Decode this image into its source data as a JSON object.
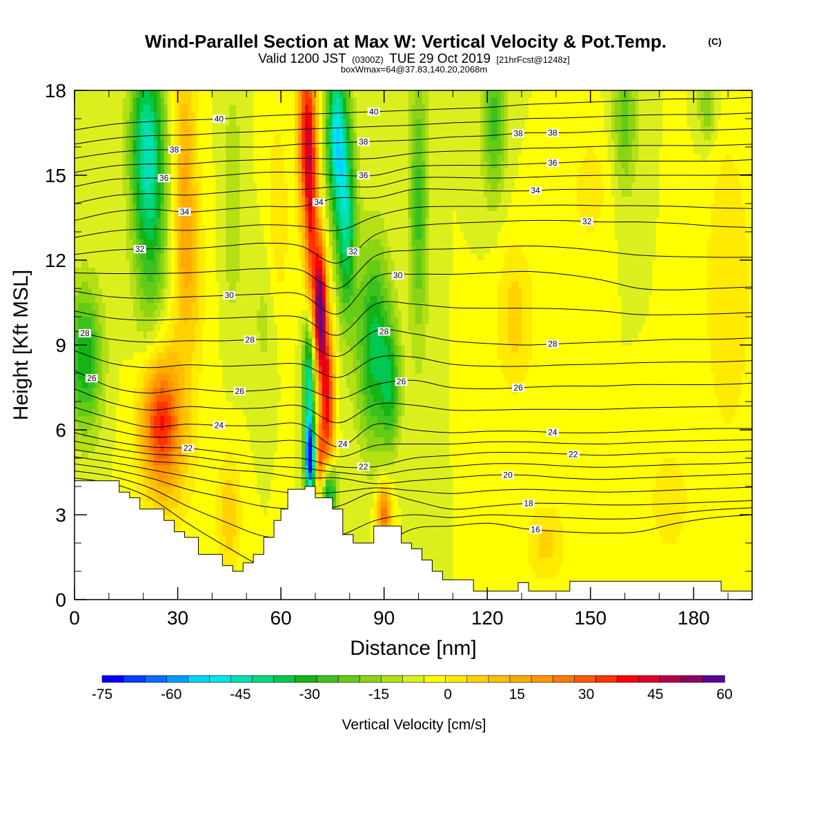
{
  "title": {
    "main": "Wind-Parallel Section at Max W: Vertical Velocity & Pot.Temp.",
    "copyright": "(C)",
    "valid_prefix": "Valid 1200 JST",
    "valid_utc": "(0300Z)",
    "valid_date": "TUE 29 Oct 2019",
    "forecast": "[21hrFcst@1248z]",
    "box_info": "boxWmax=64@37.83,140.20,2068m"
  },
  "chart_data": {
    "type": "heatmap",
    "xlabel": "Distance [nm]",
    "ylabel": "Height [Kft MSL]",
    "xlim": [
      0,
      197
    ],
    "ylim": [
      0,
      18
    ],
    "x_ticks": [
      "0",
      "30",
      "60",
      "90",
      "120",
      "150",
      "180"
    ],
    "x_tick_values": [
      0,
      30,
      60,
      90,
      120,
      150,
      180
    ],
    "y_ticks": [
      "0",
      "3",
      "6",
      "9",
      "12",
      "15",
      "18"
    ],
    "y_tick_values": [
      0,
      3,
      6,
      9,
      12,
      15,
      18
    ],
    "x_minor_step": 10,
    "y_minor_step": 1,
    "terrain": [
      [
        0,
        4.2
      ],
      [
        13,
        4.2
      ],
      [
        13,
        3.8
      ],
      [
        16,
        3.8
      ],
      [
        16,
        3.6
      ],
      [
        19,
        3.6
      ],
      [
        19,
        3.2
      ],
      [
        26,
        3.2
      ],
      [
        26,
        2.8
      ],
      [
        29,
        2.8
      ],
      [
        29,
        2.4
      ],
      [
        32,
        2.4
      ],
      [
        32,
        2.2
      ],
      [
        36,
        2.2
      ],
      [
        36,
        1.6
      ],
      [
        43,
        1.6
      ],
      [
        43,
        1.2
      ],
      [
        46,
        1.2
      ],
      [
        46,
        1.0
      ],
      [
        49,
        1.0
      ],
      [
        49,
        1.3
      ],
      [
        52,
        1.3
      ],
      [
        52,
        1.6
      ],
      [
        55,
        1.6
      ],
      [
        55,
        2.2
      ],
      [
        58,
        2.2
      ],
      [
        58,
        2.8
      ],
      [
        60,
        2.8
      ],
      [
        60,
        3.2
      ],
      [
        62,
        3.2
      ],
      [
        62,
        3.9
      ],
      [
        67,
        3.9
      ],
      [
        67,
        4.0
      ],
      [
        70,
        4.0
      ],
      [
        70,
        3.6
      ],
      [
        75,
        3.6
      ],
      [
        75,
        3.2
      ],
      [
        78,
        3.2
      ],
      [
        78,
        2.3
      ],
      [
        81,
        2.3
      ],
      [
        81,
        2.0
      ],
      [
        87,
        2.0
      ],
      [
        87,
        2.6
      ],
      [
        95,
        2.6
      ],
      [
        95,
        2.0
      ],
      [
        98,
        2.0
      ],
      [
        98,
        1.8
      ],
      [
        101,
        1.8
      ],
      [
        101,
        1.4
      ],
      [
        104,
        1.4
      ],
      [
        104,
        1.0
      ],
      [
        107,
        1.0
      ],
      [
        107,
        0.7
      ],
      [
        116,
        0.7
      ],
      [
        116,
        0.3
      ],
      [
        129,
        0.3
      ],
      [
        129,
        0.6
      ],
      [
        132,
        0.6
      ],
      [
        132,
        0.3
      ],
      [
        144,
        0.3
      ],
      [
        144,
        0.65
      ],
      [
        188,
        0.65
      ],
      [
        188,
        0.3
      ],
      [
        197,
        0.3
      ]
    ],
    "w_features": [
      {
        "x": 25,
        "y": 6.3,
        "sx": 4.0,
        "sy": 1.6,
        "w": 38
      },
      {
        "x": 28,
        "y": 5.8,
        "sx": 6.0,
        "sy": 2.6,
        "w": 10
      },
      {
        "x": 22,
        "y": 14.5,
        "sx": 3.5,
        "sy": 3.5,
        "w": -32
      },
      {
        "x": 20,
        "y": 16.5,
        "sx": 3.0,
        "sy": 2.0,
        "w": -18
      },
      {
        "x": 3,
        "y": 8.5,
        "sx": 3.5,
        "sy": 1.8,
        "w": -30
      },
      {
        "x": 32,
        "y": 15.0,
        "sx": 2.5,
        "sy": 3.5,
        "w": 20
      },
      {
        "x": 34,
        "y": 11.5,
        "sx": 3.0,
        "sy": 2.0,
        "w": 10
      },
      {
        "x": 71.5,
        "y": 10.3,
        "sx": 1.2,
        "sy": 1.6,
        "w": 65
      },
      {
        "x": 73.5,
        "y": 7.0,
        "sx": 1.4,
        "sy": 2.0,
        "w": 48
      },
      {
        "x": 69.0,
        "y": 13.5,
        "sx": 1.4,
        "sy": 3.5,
        "w": 40
      },
      {
        "x": 67.0,
        "y": 16.5,
        "sx": 1.6,
        "sy": 2.2,
        "w": 40
      },
      {
        "x": 71.0,
        "y": 5.0,
        "sx": 1.0,
        "sy": 0.9,
        "w": 35
      },
      {
        "x": 68.5,
        "y": 5.0,
        "sx": 1.1,
        "sy": 0.9,
        "w": -75
      },
      {
        "x": 68.2,
        "y": 7.8,
        "sx": 1.2,
        "sy": 1.6,
        "w": -52
      },
      {
        "x": 74.0,
        "y": 3.8,
        "sx": 1.5,
        "sy": 0.7,
        "w": -45
      },
      {
        "x": 76.0,
        "y": 16.5,
        "sx": 2.0,
        "sy": 2.0,
        "w": -45
      },
      {
        "x": 79.0,
        "y": 13.5,
        "sx": 2.0,
        "sy": 2.5,
        "w": -38
      },
      {
        "x": 87.0,
        "y": 9.0,
        "sx": 3.5,
        "sy": 2.5,
        "w": -32
      },
      {
        "x": 92.0,
        "y": 7.5,
        "sx": 2.0,
        "sy": 1.5,
        "w": -22
      },
      {
        "x": 90.0,
        "y": 3.0,
        "sx": 1.5,
        "sy": 0.8,
        "w": 35
      },
      {
        "x": 100.0,
        "y": 14.0,
        "sx": 2.0,
        "sy": 3.5,
        "w": -22
      },
      {
        "x": 122.0,
        "y": 17.0,
        "sx": 2.5,
        "sy": 2.0,
        "w": -22
      },
      {
        "x": 160.0,
        "y": 17.0,
        "sx": 2.5,
        "sy": 1.8,
        "w": -18
      },
      {
        "x": 184.0,
        "y": 17.5,
        "sx": 2.0,
        "sy": 1.0,
        "w": -15
      },
      {
        "x": 59.0,
        "y": 13.0,
        "sx": 2.5,
        "sy": 3.0,
        "w": 10
      },
      {
        "x": 46.0,
        "y": 14.0,
        "sx": 2.0,
        "sy": 3.0,
        "w": -10
      },
      {
        "x": 56.0,
        "y": 10.0,
        "sx": 3.0,
        "sy": 2.0,
        "w": -8
      },
      {
        "x": 45.0,
        "y": 3.0,
        "sx": 2.5,
        "sy": 1.5,
        "w": 14
      },
      {
        "x": 128.0,
        "y": 10.0,
        "sx": 4.0,
        "sy": 2.0,
        "w": 12
      },
      {
        "x": 137.0,
        "y": 2.0,
        "sx": 4.0,
        "sy": 1.0,
        "w": 12
      },
      {
        "x": 190.0,
        "y": 11.0,
        "sx": 5.0,
        "sy": 4.0,
        "w": 10
      },
      {
        "x": 173.0,
        "y": 3.5,
        "sx": 5.0,
        "sy": 1.5,
        "w": 8
      },
      {
        "x": 150.0,
        "y": 14.5,
        "sx": 4.0,
        "sy": 1.5,
        "w": 8
      }
    ],
    "theta_contours": [
      {
        "level": 15,
        "label": "16",
        "y": [
          4.3,
          4.1,
          3.6,
          2.7,
          1.9,
          1.2,
          1.1,
          1.2,
          1.8,
          2.5,
          2.6,
          2.7,
          2.5,
          2.4,
          2.35,
          2.4,
          2.7,
          2.9,
          3.0
        ]
      },
      {
        "level": 16,
        "label": "18",
        "y": [
          4.8,
          4.6,
          4.3,
          3.9,
          3.6,
          3.3,
          3.2,
          3.3,
          3.8,
          3.5,
          3.2,
          3.3,
          3.4,
          3.4,
          3.35,
          3.35,
          3.4,
          3.45,
          3.5
        ]
      },
      {
        "level": 17,
        "label": "20",
        "y": [
          5.3,
          5.1,
          4.9,
          4.8,
          4.6,
          4.5,
          4.3,
          4.3,
          4.1,
          4.2,
          4.3,
          4.4,
          4.4,
          4.3,
          4.25,
          4.3,
          4.35,
          4.4,
          4.45
        ]
      },
      {
        "level": 18,
        "label": "22",
        "y": [
          5.9,
          5.6,
          5.4,
          5.35,
          5.2,
          5.0,
          5.0,
          4.7,
          4.7,
          5.0,
          5.1,
          5.2,
          5.2,
          5.15,
          5.1,
          5.15,
          5.2,
          5.2,
          5.25
        ]
      },
      {
        "level": 19,
        "label": "24",
        "y": [
          6.8,
          6.4,
          6.1,
          6.2,
          6.15,
          6.15,
          6.2,
          5.4,
          6.2,
          6.0,
          5.9,
          5.95,
          5.95,
          5.9,
          5.9,
          5.95,
          6.0,
          6.05,
          6.05
        ]
      },
      {
        "level": 20,
        "label": "26",
        "y": [
          8.1,
          7.5,
          7.3,
          7.45,
          7.35,
          7.4,
          7.5,
          7.1,
          7.6,
          7.75,
          7.5,
          7.45,
          7.5,
          7.55,
          7.55,
          7.6,
          7.6,
          7.6,
          7.65
        ]
      },
      {
        "level": 21,
        "label": "28",
        "y": [
          9.5,
          9.2,
          9.1,
          9.15,
          9.15,
          9.2,
          9.15,
          8.6,
          9.5,
          9.4,
          9.15,
          9.05,
          9.0,
          9.05,
          9.1,
          9.15,
          9.2,
          9.2,
          9.25
        ]
      },
      {
        "level": 22,
        "label": "30",
        "y": [
          10.9,
          10.7,
          10.65,
          10.7,
          10.75,
          10.8,
          10.8,
          10.1,
          11.4,
          11.5,
          11.5,
          11.55,
          11.6,
          11.5,
          11.3,
          11.0,
          10.95,
          11.0,
          11.05
        ]
      },
      {
        "level": 23,
        "label": "32",
        "y": [
          12.2,
          12.35,
          12.4,
          12.4,
          12.5,
          12.6,
          12.5,
          11.9,
          12.9,
          13.2,
          13.3,
          13.35,
          13.4,
          13.4,
          13.35,
          13.35,
          13.3,
          13.2,
          13.15
        ]
      },
      {
        "level": 24,
        "label": "34",
        "y": [
          13.4,
          13.7,
          13.8,
          13.7,
          13.8,
          13.9,
          13.9,
          14.2,
          14.2,
          14.5,
          14.5,
          14.45,
          14.45,
          14.5,
          14.5,
          14.5,
          14.5,
          14.5,
          14.5
        ]
      },
      {
        "level": 25,
        "label": "36",
        "y": [
          14.6,
          14.85,
          14.9,
          14.9,
          15.0,
          15.1,
          15.1,
          15.0,
          15.0,
          15.3,
          15.35,
          15.35,
          15.4,
          15.45,
          15.5,
          15.5,
          15.5,
          15.5,
          15.55
        ]
      },
      {
        "level": 26,
        "label": "38",
        "y": [
          15.6,
          15.8,
          15.9,
          15.9,
          16.0,
          16.0,
          16.1,
          16.15,
          16.2,
          16.25,
          16.35,
          16.4,
          16.5,
          16.5,
          16.55,
          16.6,
          16.6,
          16.6,
          16.65
        ]
      },
      {
        "level": 27,
        "label": "40",
        "y": [
          16.6,
          16.8,
          16.9,
          16.95,
          17.0,
          17.1,
          17.15,
          17.2,
          17.25,
          17.3,
          17.35,
          17.4,
          17.5,
          17.55,
          17.6,
          17.65,
          17.7,
          17.7,
          17.75
        ]
      }
    ],
    "contour_label_placements": [
      {
        "level": 27,
        "x": 42
      },
      {
        "level": 27,
        "x": 87
      },
      {
        "level": 26,
        "x": 29
      },
      {
        "level": 26,
        "x": 84
      },
      {
        "level": 26,
        "x": 129
      },
      {
        "level": 26,
        "x": 139
      },
      {
        "level": 25,
        "x": 26
      },
      {
        "level": 25,
        "x": 84
      },
      {
        "level": 25,
        "x": 139
      },
      {
        "level": 24,
        "x": 32
      },
      {
        "level": 24,
        "x": 71
      },
      {
        "level": 24,
        "x": 134
      },
      {
        "level": 23,
        "x": 19
      },
      {
        "level": 23,
        "x": 81
      },
      {
        "level": 23,
        "x": 149
      },
      {
        "level": 22,
        "x": 45
      },
      {
        "level": 22,
        "x": 94
      },
      {
        "level": 21,
        "x": 3
      },
      {
        "level": 21,
        "x": 51
      },
      {
        "level": 21,
        "x": 90
      },
      {
        "level": 21,
        "x": 139
      },
      {
        "level": 20,
        "x": 5
      },
      {
        "level": 20,
        "x": 48
      },
      {
        "level": 20,
        "x": 95
      },
      {
        "level": 20,
        "x": 129
      },
      {
        "level": 19,
        "x": 42
      },
      {
        "level": 19,
        "x": 78
      },
      {
        "level": 19,
        "x": 139
      },
      {
        "level": 18,
        "x": 33
      },
      {
        "level": 18,
        "x": 84
      },
      {
        "level": 18,
        "x": 145
      },
      {
        "level": 17,
        "x": 126
      },
      {
        "level": 16,
        "x": 132
      },
      {
        "level": 15,
        "x": 134
      }
    ],
    "colorbar": {
      "label": "Vertical Velocity [cm/s]",
      "tick_labels": [
        "-75",
        "-60",
        "-45",
        "-30",
        "-15",
        "0",
        "15",
        "30",
        "45",
        "60"
      ],
      "tick_values": [
        -75,
        -60,
        -45,
        -30,
        -15,
        0,
        15,
        30,
        45,
        60
      ],
      "min": -75,
      "max": 60,
      "step": 5,
      "colors": [
        "#0000ff",
        "#0a3cff",
        "#0a6cff",
        "#009cff",
        "#00d2ff",
        "#00e6e6",
        "#00e0b0",
        "#00d880",
        "#00c850",
        "#14b414",
        "#3cc020",
        "#64cc14",
        "#8cd414",
        "#b4e014",
        "#dcef1e",
        "#ffff00",
        "#ffea00",
        "#ffd200",
        "#ffbe00",
        "#ffaa00",
        "#ff9600",
        "#ff7800",
        "#ff5a00",
        "#ff3200",
        "#ff0000",
        "#dc0028",
        "#b40046",
        "#8c0064",
        "#5a0096"
      ]
    }
  }
}
